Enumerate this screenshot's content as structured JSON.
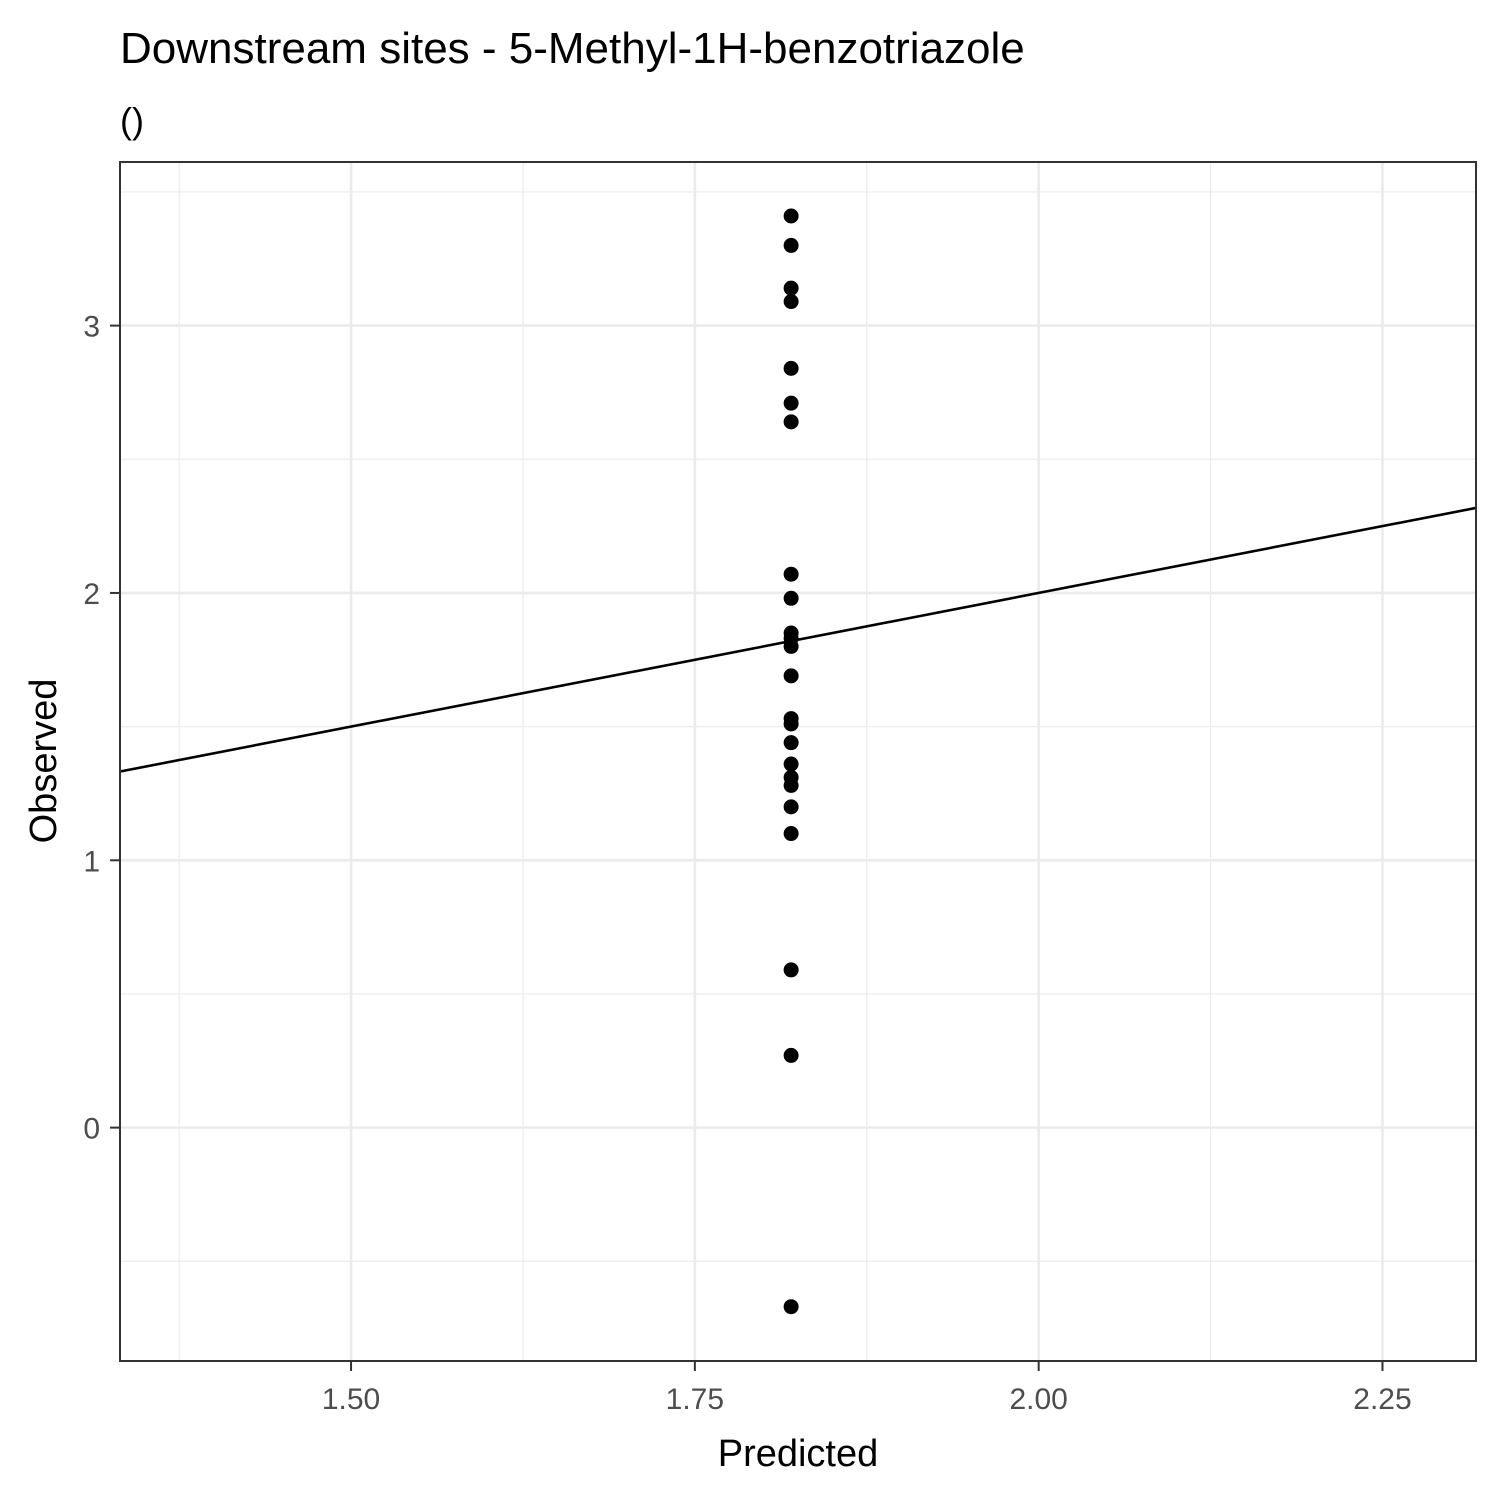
{
  "chart_data": {
    "type": "scatter",
    "title": "Downstream sites - 5-Methyl-1H-benzotriazole",
    "subtitle": "()",
    "xlabel": "Predicted",
    "ylabel": "Observed",
    "xlim": [
      1.332,
      2.318
    ],
    "ylim": [
      -0.873,
      3.612
    ],
    "x_ticks": [
      1.5,
      1.75,
      2.0,
      2.25
    ],
    "x_tick_labels": [
      "1.50",
      "1.75",
      "2.00",
      "2.25"
    ],
    "y_ticks": [
      0,
      1,
      2,
      3
    ],
    "y_tick_labels": [
      "0",
      "1",
      "2",
      "3"
    ],
    "grid": true,
    "legend": "none",
    "reference_line": {
      "type": "identity",
      "slope": 1,
      "intercept": 0,
      "color": "#000000"
    },
    "point_color": "#000000",
    "points": [
      {
        "x": 1.82,
        "y": 3.41
      },
      {
        "x": 1.82,
        "y": 3.3
      },
      {
        "x": 1.82,
        "y": 3.14
      },
      {
        "x": 1.82,
        "y": 3.09
      },
      {
        "x": 1.82,
        "y": 2.84
      },
      {
        "x": 1.82,
        "y": 2.71
      },
      {
        "x": 1.82,
        "y": 2.64
      },
      {
        "x": 1.82,
        "y": 2.07
      },
      {
        "x": 1.82,
        "y": 1.98
      },
      {
        "x": 1.82,
        "y": 1.85
      },
      {
        "x": 1.82,
        "y": 1.83
      },
      {
        "x": 1.82,
        "y": 1.8
      },
      {
        "x": 1.82,
        "y": 1.69
      },
      {
        "x": 1.82,
        "y": 1.53
      },
      {
        "x": 1.82,
        "y": 1.51
      },
      {
        "x": 1.82,
        "y": 1.44
      },
      {
        "x": 1.82,
        "y": 1.36
      },
      {
        "x": 1.82,
        "y": 1.31
      },
      {
        "x": 1.82,
        "y": 1.28
      },
      {
        "x": 1.82,
        "y": 1.2
      },
      {
        "x": 1.82,
        "y": 1.1
      },
      {
        "x": 1.82,
        "y": 0.59
      },
      {
        "x": 1.82,
        "y": 0.27
      },
      {
        "x": 1.82,
        "y": -0.67
      }
    ]
  }
}
